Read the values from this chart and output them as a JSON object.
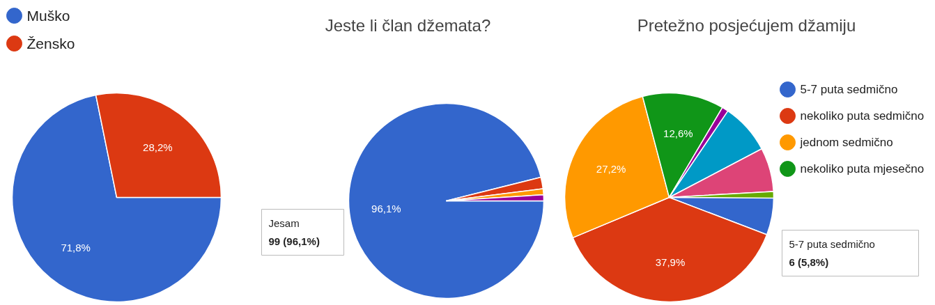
{
  "chart_data": [
    {
      "type": "pie",
      "categories": [
        "Muško",
        "Žensko"
      ],
      "values": [
        71.8,
        28.2
      ],
      "colors": [
        "#3366cc",
        "#dc3912"
      ],
      "value_labels": [
        "71,8%",
        "28,2%"
      ],
      "legend": "top left"
    },
    {
      "type": "pie",
      "title": "Jeste li član džemata?",
      "categories": [
        "Jesam",
        null,
        null,
        null
      ],
      "values": [
        96.1,
        1.9,
        1.0,
        1.0
      ],
      "colors": [
        "#3366cc",
        "#dc3912",
        "#ff9900",
        "#990099"
      ],
      "value_labels": [
        "96,1%",
        null,
        null,
        null
      ],
      "annotations": [
        "99 (96,1%)"
      ]
    },
    {
      "type": "pie",
      "title": "Pretežno posjećujem džamiju",
      "categories": [
        "5-7 puta sedmično",
        "nekoliko puta sedmično",
        "jednom sedmično",
        "nekoliko puta mjesečno",
        null,
        null,
        null,
        null
      ],
      "values": [
        5.8,
        37.9,
        27.2,
        12.6,
        1.0,
        7.8,
        6.8,
        1.0
      ],
      "colors": [
        "#3366cc",
        "#dc3912",
        "#ff9900",
        "#109618",
        "#990099",
        "#0099c6",
        "#dd4477",
        "#66aa00"
      ],
      "value_labels": [
        null,
        "37,9%",
        "27,2%",
        "12,6%",
        null,
        null,
        null,
        null
      ],
      "legend": "top right",
      "annotations": [
        "6 (5,8%)"
      ]
    }
  ]
}
